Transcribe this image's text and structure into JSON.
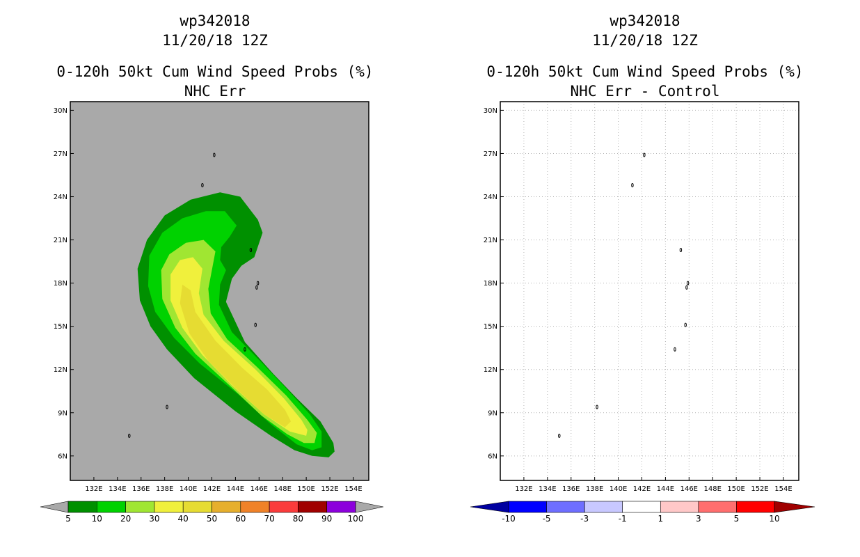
{
  "chart_data": [
    {
      "type": "heatmap",
      "title_lines": [
        "wp342018",
        "11/20/18 12Z",
        "0-120h 50kt Cum Wind Speed Probs (%)",
        "NHC Err"
      ],
      "map": {
        "lon_range": [
          130,
          155.3
        ],
        "lat_range": [
          4.3,
          30.6
        ],
        "x_ticks": [
          "132E",
          "134E",
          "136E",
          "138E",
          "140E",
          "142E",
          "144E",
          "146E",
          "148E",
          "150E",
          "152E",
          "154E"
        ],
        "x_tick_values": [
          132,
          134,
          136,
          138,
          140,
          142,
          144,
          146,
          148,
          150,
          152,
          154
        ],
        "y_ticks": [
          "6N",
          "9N",
          "12N",
          "15N",
          "18N",
          "21N",
          "24N",
          "27N",
          "30N"
        ],
        "y_tick_values": [
          6,
          9,
          12,
          15,
          18,
          21,
          24,
          27,
          30
        ],
        "background_color": "#a9a9a9",
        "gridlines": false
      },
      "color_levels": [
        5,
        10,
        20,
        30,
        40,
        50,
        60,
        70,
        80,
        90,
        100
      ],
      "colorbar_labels": [
        "5",
        "10",
        "20",
        "30",
        "40",
        "50",
        "60",
        "70",
        "80",
        "90",
        "100"
      ],
      "colorbar_colors": [
        "#009000",
        "#00d200",
        "#a0e632",
        "#f0f03c",
        "#e6dc32",
        "#e6af2d",
        "#f08228",
        "#fa3c3c",
        "#a00000",
        "#8c00dc"
      ],
      "contours": [
        {
          "level": 5,
          "color": "#009000",
          "polygon": [
            [
              151.9,
              5.9
            ],
            [
              150.5,
              6.0
            ],
            [
              149,
              6.4
            ],
            [
              147,
              7.4
            ],
            [
              144,
              9.1
            ],
            [
              140.5,
              11.4
            ],
            [
              138.2,
              13.4
            ],
            [
              136.8,
              15.0
            ],
            [
              135.9,
              16.8
            ],
            [
              135.7,
              19.0
            ],
            [
              136.5,
              21.0
            ],
            [
              138,
              22.7
            ],
            [
              140.2,
              23.8
            ],
            [
              142.7,
              24.3
            ],
            [
              144.4,
              24.0
            ],
            [
              145.9,
              22.4
            ],
            [
              146.3,
              21.5
            ],
            [
              145.6,
              19.8
            ],
            [
              144.5,
              19.2
            ],
            [
              143.7,
              18.3
            ],
            [
              143.2,
              16.7
            ],
            [
              144.8,
              13.9
            ],
            [
              147.2,
              11.7
            ],
            [
              149.2,
              10.0
            ],
            [
              151.2,
              8.4
            ],
            [
              152.3,
              6.9
            ],
            [
              152.4,
              6.3
            ]
          ]
        },
        {
          "level": 10,
          "color": "#00d200",
          "polygon": [
            [
              151.3,
              6.6
            ],
            [
              150.5,
              6.4
            ],
            [
              149.2,
              6.8
            ],
            [
              147,
              8.2
            ],
            [
              144.2,
              10.3
            ],
            [
              141,
              12.4
            ],
            [
              138.8,
              14.2
            ],
            [
              137.2,
              16.0
            ],
            [
              136.6,
              17.8
            ],
            [
              136.7,
              19.9
            ],
            [
              137.8,
              21.5
            ],
            [
              139.5,
              22.5
            ],
            [
              141.5,
              23.0
            ],
            [
              143.1,
              23.0
            ],
            [
              144.1,
              22.0
            ],
            [
              143.5,
              21.2
            ],
            [
              142.8,
              20.5
            ],
            [
              142.7,
              19.6
            ],
            [
              143.2,
              18.9
            ],
            [
              142.7,
              17.9
            ],
            [
              142.6,
              16.5
            ],
            [
              143.7,
              14.6
            ],
            [
              146.2,
              12.5
            ],
            [
              148.3,
              10.7
            ],
            [
              150.3,
              8.9
            ],
            [
              151.3,
              7.7
            ]
          ]
        },
        {
          "level": 20,
          "color": "#a0e632",
          "polygon": [
            [
              150.7,
              6.9
            ],
            [
              149.8,
              6.9
            ],
            [
              148.4,
              7.5
            ],
            [
              146.2,
              8.8
            ],
            [
              143.5,
              10.9
            ],
            [
              140.6,
              13.1
            ],
            [
              138.9,
              14.9
            ],
            [
              137.8,
              16.9
            ],
            [
              137.7,
              18.9
            ],
            [
              138.4,
              20.0
            ],
            [
              139.8,
              20.8
            ],
            [
              141.3,
              21.0
            ],
            [
              142.3,
              20.2
            ],
            [
              142.0,
              18.9
            ],
            [
              141.7,
              17.6
            ],
            [
              141.9,
              15.9
            ],
            [
              143.3,
              14.1
            ],
            [
              145.8,
              12.2
            ],
            [
              148.3,
              10.2
            ],
            [
              150.1,
              8.5
            ],
            [
              150.9,
              7.6
            ]
          ]
        },
        {
          "level": 30,
          "color": "#f0f03c",
          "polygon": [
            [
              150.0,
              7.4
            ],
            [
              148.6,
              7.7
            ],
            [
              146.4,
              8.9
            ],
            [
              143.7,
              10.9
            ],
            [
              141.2,
              13.0
            ],
            [
              139.5,
              14.9
            ],
            [
              138.5,
              16.8
            ],
            [
              138.5,
              18.6
            ],
            [
              139.3,
              19.6
            ],
            [
              140.4,
              19.8
            ],
            [
              141.2,
              19.0
            ],
            [
              140.9,
              17.3
            ],
            [
              141.3,
              15.8
            ],
            [
              143.0,
              14.0
            ],
            [
              145.7,
              12.0
            ],
            [
              148.1,
              10.0
            ],
            [
              149.6,
              8.5
            ],
            [
              150.1,
              7.8
            ]
          ]
        },
        {
          "level": 40,
          "color": "#e6dc32",
          "polygon": [
            [
              148.2,
              8.0
            ],
            [
              146.4,
              8.9
            ],
            [
              143.9,
              10.8
            ],
            [
              141.7,
              12.6
            ],
            [
              140.1,
              14.5
            ],
            [
              139.3,
              16.6
            ],
            [
              139.5,
              17.9
            ],
            [
              140.2,
              17.5
            ],
            [
              140.6,
              16.0
            ],
            [
              142.3,
              14.0
            ],
            [
              144.6,
              12.1
            ],
            [
              146.7,
              10.6
            ],
            [
              148.2,
              9.2
            ],
            [
              148.7,
              8.4
            ]
          ]
        }
      ],
      "islands": [
        [
          135.0,
          7.4
        ],
        [
          138.2,
          9.4
        ],
        [
          141.2,
          24.8
        ],
        [
          142.2,
          26.9
        ],
        [
          144.8,
          13.4
        ],
        [
          145.7,
          15.1
        ],
        [
          145.9,
          18.0
        ],
        [
          145.3,
          20.3
        ],
        [
          145.8,
          17.7
        ]
      ]
    },
    {
      "type": "heatmap",
      "title_lines": [
        "wp342018",
        "11/20/18 12Z",
        "0-120h 50kt Cum Wind Speed Probs (%)",
        "NHC Err - Control"
      ],
      "map": {
        "lon_range": [
          130,
          155.3
        ],
        "lat_range": [
          4.3,
          30.6
        ],
        "x_ticks": [
          "132E",
          "134E",
          "136E",
          "138E",
          "140E",
          "142E",
          "144E",
          "146E",
          "148E",
          "150E",
          "152E",
          "154E"
        ],
        "x_tick_values": [
          132,
          134,
          136,
          138,
          140,
          142,
          144,
          146,
          148,
          150,
          152,
          154
        ],
        "y_ticks": [
          "6N",
          "9N",
          "12N",
          "15N",
          "18N",
          "21N",
          "24N",
          "27N",
          "30N"
        ],
        "y_tick_values": [
          6,
          9,
          12,
          15,
          18,
          21,
          24,
          27,
          30
        ],
        "background_color": "#ffffff",
        "gridlines": true
      },
      "color_levels": [
        -10,
        -5,
        -3,
        -1,
        1,
        3,
        5,
        10
      ],
      "colorbar_labels": [
        "-10",
        "-5",
        "-3",
        "-1",
        "1",
        "3",
        "5",
        "10"
      ],
      "colorbar_colors": [
        "#0000a0",
        "#0000ff",
        "#6e6eff",
        "#c8c8ff",
        "#ffffff",
        "#ffc8c8",
        "#ff6e6e",
        "#ff0000",
        "#a00000"
      ],
      "contours": [],
      "islands": [
        [
          135.0,
          7.4
        ],
        [
          138.2,
          9.4
        ],
        [
          141.2,
          24.8
        ],
        [
          142.2,
          26.9
        ],
        [
          144.8,
          13.4
        ],
        [
          145.7,
          15.1
        ],
        [
          145.9,
          18.0
        ],
        [
          145.3,
          20.3
        ],
        [
          145.8,
          17.7
        ]
      ]
    }
  ]
}
